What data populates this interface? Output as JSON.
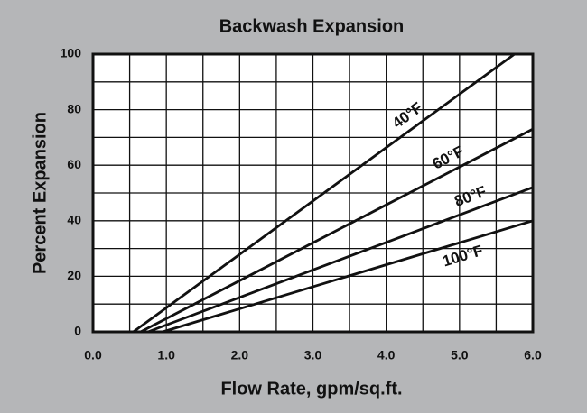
{
  "chart_data": {
    "type": "line",
    "title": "Backwash Expansion",
    "x_label": "Flow Rate, gpm/sq.ft.",
    "y_label": "Percent Expansion",
    "xlim": [
      0,
      6
    ],
    "ylim": [
      0,
      100
    ],
    "xticks": [
      {
        "value": 0,
        "label": "0.0"
      },
      {
        "value": 1,
        "label": "1.0"
      },
      {
        "value": 2,
        "label": "2.0"
      },
      {
        "value": 3,
        "label": "3.0"
      },
      {
        "value": 4,
        "label": "4.0"
      },
      {
        "value": 5,
        "label": "5.0"
      },
      {
        "value": 6,
        "label": "6.0"
      }
    ],
    "yticks": [
      0,
      20,
      40,
      60,
      80,
      100
    ],
    "x_minor_ticks": [
      0.5,
      1.5,
      2.5,
      3.5,
      4.5,
      5.5
    ],
    "y_minor_ticks": [
      10,
      30,
      50,
      70,
      90
    ],
    "grid": true,
    "series": [
      {
        "name": "40°F",
        "color": "#111111",
        "x": [
          0.55,
          5.75
        ],
        "values": [
          0,
          100
        ]
      },
      {
        "name": "60°F",
        "color": "#111111",
        "x": [
          0.65,
          6.0
        ],
        "values": [
          0,
          73
        ]
      },
      {
        "name": "80°F",
        "color": "#111111",
        "x": [
          0.75,
          6.0
        ],
        "values": [
          0,
          52
        ]
      },
      {
        "name": "100°F",
        "color": "#111111",
        "x": [
          0.95,
          6.0
        ],
        "values": [
          0,
          40
        ]
      }
    ]
  }
}
